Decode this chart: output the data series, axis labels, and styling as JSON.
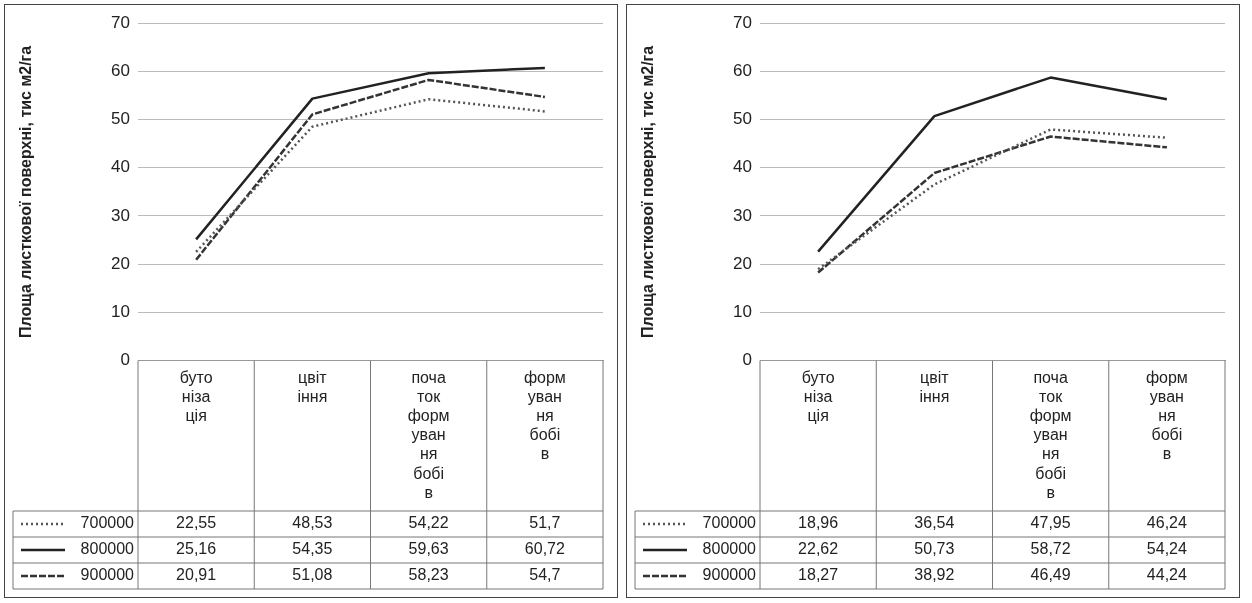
{
  "chart_data": [
    {
      "type": "line",
      "ylabel": "Площа листкової поверхні, тис м2/га",
      "categories": [
        "бутонізація",
        "цвітіння",
        "початок формування бобів",
        "формування бобів"
      ],
      "series": [
        {
          "name": "700000",
          "color": "#555555",
          "line_style": "dotted",
          "values": [
            22.55,
            48.53,
            54.22,
            51.7
          ],
          "value_labels": [
            "22,55",
            "48,53",
            "54,22",
            "51,7"
          ]
        },
        {
          "name": "800000",
          "color": "#222222",
          "line_style": "solid",
          "values": [
            25.16,
            54.35,
            59.63,
            60.72
          ],
          "value_labels": [
            "25,16",
            "54,35",
            "59,63",
            "60,72"
          ]
        },
        {
          "name": "900000",
          "color": "#333333",
          "line_style": "dashed",
          "values": [
            20.91,
            51.08,
            58.23,
            54.7
          ],
          "value_labels": [
            "20,91",
            "51,08",
            "58,23",
            "54,7"
          ]
        }
      ],
      "ylim": [
        0,
        70
      ],
      "yticks": [
        0,
        10,
        20,
        30,
        40,
        50,
        60,
        70
      ],
      "grid": "y",
      "legend": "bottom",
      "marker": "none"
    },
    {
      "type": "line",
      "ylabel": "Площа листкової поверхні, тис м2/га",
      "categories": [
        "бутонізація",
        "цвітіння",
        "початок формування бобів",
        "формування бобів"
      ],
      "series": [
        {
          "name": "700000",
          "color": "#555555",
          "line_style": "dotted",
          "values": [
            18.96,
            36.54,
            47.95,
            46.24
          ],
          "value_labels": [
            "18,96",
            "36,54",
            "47,95",
            "46,24"
          ]
        },
        {
          "name": "800000",
          "color": "#222222",
          "line_style": "solid",
          "values": [
            22.62,
            50.73,
            58.72,
            54.24
          ],
          "value_labels": [
            "22,62",
            "50,73",
            "58,72",
            "54,24"
          ]
        },
        {
          "name": "900000",
          "color": "#333333",
          "line_style": "dashed",
          "values": [
            18.27,
            38.92,
            46.49,
            44.24
          ],
          "value_labels": [
            "18,27",
            "38,92",
            "46,49",
            "44,24"
          ]
        }
      ],
      "ylim": [
        0,
        70
      ],
      "yticks": [
        0,
        10,
        20,
        30,
        40,
        50,
        60,
        70
      ],
      "grid": "y",
      "legend": "bottom",
      "marker": "none"
    }
  ]
}
